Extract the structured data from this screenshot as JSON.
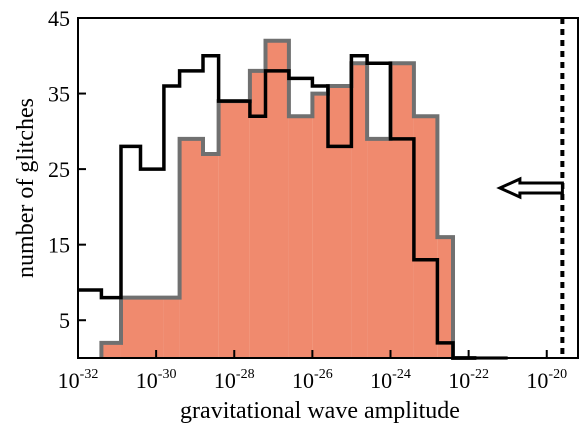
{
  "chart_data": {
    "type": "histogram",
    "title": "",
    "xlabel": "gravitational wave amplitude",
    "ylabel": "number of glitches",
    "x_scale": "log10",
    "x_bin_edges_log10": [
      -32,
      -31.4,
      -30.4,
      -29.8,
      -29.4,
      -28.8,
      -28.4,
      -27.6,
      -27.2,
      -26.8,
      -26.4,
      -25.8,
      -25.6,
      -25.2,
      -24.6,
      -24.0,
      -23.4,
      -23.2,
      -22.6,
      -22.0,
      -21.4,
      -20.6,
      -20.4
    ],
    "xlim_log10": [
      -32,
      -19.2
    ],
    "ylim": [
      0,
      45
    ],
    "y_ticks": [
      5,
      15,
      25,
      35,
      45
    ],
    "y_tick_labels": [
      "5",
      "15",
      "25",
      "35",
      "45"
    ],
    "x_tick_exponents": [
      -32,
      -30,
      -28,
      -26,
      -24,
      -22,
      -20
    ],
    "x_tick_base": "10",
    "series": [
      {
        "style": "black-outline",
        "color": "#000000",
        "bins_log10": [
          [
            -32,
            -31.4
          ],
          [
            -31.4,
            -30.9
          ],
          [
            -30.9,
            -30.4
          ],
          [
            -30.4,
            -29.8
          ],
          [
            -29.8,
            -29.4
          ],
          [
            -29.4,
            -28.8
          ],
          [
            -28.8,
            -28.4
          ],
          [
            -28.4,
            -27.6
          ],
          [
            -27.6,
            -27.2
          ],
          [
            -27.2,
            -26.6
          ],
          [
            -26.6,
            -26.0
          ],
          [
            -26.0,
            -25.6
          ],
          [
            -25.6,
            -25.0
          ],
          [
            -25.0,
            -24.6
          ],
          [
            -24.6,
            -24.0
          ],
          [
            -24.0,
            -23.4
          ],
          [
            -23.4,
            -22.8
          ],
          [
            -22.8,
            -22.4
          ],
          [
            -22.4,
            -21.8
          ]
        ],
        "values": [
          9,
          8,
          28,
          25,
          36,
          38,
          40,
          34,
          32,
          38,
          37,
          36,
          28,
          40,
          39,
          29,
          13,
          2,
          0
        ]
      },
      {
        "style": "salmon-filled",
        "color": "#f08a6e",
        "edge_color": "#707070",
        "bins_log10": [
          [
            -31.4,
            -30.9
          ],
          [
            -30.9,
            -29.8
          ],
          [
            -29.8,
            -29.4
          ],
          [
            -29.4,
            -28.8
          ],
          [
            -28.8,
            -28.4
          ],
          [
            -28.4,
            -27.6
          ],
          [
            -27.6,
            -27.2
          ],
          [
            -27.2,
            -26.6
          ],
          [
            -26.6,
            -26.0
          ],
          [
            -26.0,
            -25.6
          ],
          [
            -25.6,
            -25.0
          ],
          [
            -25.0,
            -24.6
          ],
          [
            -24.6,
            -24.0
          ],
          [
            -24.0,
            -23.4
          ],
          [
            -23.4,
            -22.8
          ],
          [
            -22.8,
            -22.4
          ],
          [
            -22.4,
            -21.8
          ],
          [
            -21.8,
            -21.4
          ],
          [
            -21.4,
            -21.0
          ]
        ],
        "values": [
          2,
          8,
          8,
          29,
          27,
          34,
          38,
          42,
          32,
          35,
          36,
          39,
          29,
          39,
          32,
          16,
          0,
          0,
          0
        ]
      }
    ],
    "annotations": [
      {
        "type": "vertical-dashed-line",
        "x_log10": -19.6,
        "color": "#000000"
      },
      {
        "type": "left-arrow",
        "x_log10_tip": -21.2,
        "x_log10_tail": -19.6,
        "y": 22.5,
        "color": "#000000"
      }
    ],
    "colors": {
      "filled_series": "#f08a6e",
      "filled_edge": "#707070",
      "outline_series": "#000000",
      "frame": "#000000"
    }
  }
}
